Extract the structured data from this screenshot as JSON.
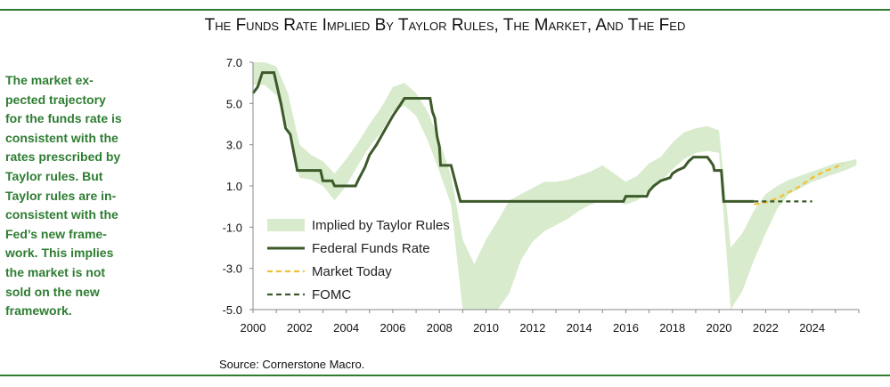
{
  "header": {
    "title": "The Funds Rate Implied By Taylor Rules, The Market, And The Fed"
  },
  "sidebar": {
    "lines": [
      "The market ex-",
      "pected trajectory",
      "for the funds rate is",
      "consistent with the",
      "rates prescribed by",
      "Taylor rules.  But",
      "Taylor rules are in-",
      "consistent with the",
      "Fed’s new frame-",
      "work.  This implies",
      "the market is not",
      "sold on the new",
      "framework."
    ]
  },
  "footer": {
    "source": "Source: Cornerstone Macro."
  },
  "colors": {
    "accent_green": "#2e7d32",
    "sidebar_text": "#2e7d32",
    "band_fill": "#d8ebcc",
    "fed_line": "#3d5a2b",
    "market_line": "#f2c037",
    "fomc_line": "#3d5a2b"
  },
  "chart_data": {
    "type": "line",
    "title": "The Funds Rate Implied By Taylor Rules, The Market, And The Fed",
    "xlabel": "",
    "ylabel": "",
    "xlim": [
      2000,
      2026
    ],
    "ylim": [
      -5,
      7
    ],
    "x_ticks": [
      "2000",
      "2002",
      "2004",
      "2006",
      "2008",
      "2010",
      "2012",
      "2014",
      "2016",
      "2018",
      "2020",
      "2022",
      "2024"
    ],
    "y_ticks": [
      "7.0",
      "5.0",
      "3.0",
      "1.0",
      "-1.0",
      "-3.0",
      "-5.0"
    ],
    "grid": false,
    "legend": {
      "placement": "lower-left",
      "entries": [
        "Implied by Taylor Rules",
        "Federal Funds Rate",
        "Market Today",
        "FOMC"
      ]
    },
    "series": [
      {
        "name": "Implied by Taylor Rules",
        "style": "band",
        "x": [
          2000.0,
          2000.5,
          2001.0,
          2001.5,
          2002.0,
          2002.5,
          2003.0,
          2003.5,
          2004.0,
          2004.5,
          2005.0,
          2005.5,
          2006.0,
          2006.5,
          2007.0,
          2007.5,
          2008.0,
          2008.5,
          2009.0,
          2009.5,
          2010.0,
          2010.5,
          2011.0,
          2011.5,
          2012.0,
          2012.5,
          2013.0,
          2013.5,
          2014.0,
          2014.5,
          2015.0,
          2015.5,
          2016.0,
          2016.5,
          2017.0,
          2017.5,
          2018.0,
          2018.5,
          2019.0,
          2019.5,
          2020.0,
          2020.5,
          2021.0,
          2021.5,
          2022.0,
          2022.5,
          2023.0,
          2023.5,
          2024.0,
          2024.5,
          2025.0,
          2025.5,
          2025.9
        ],
        "upper": [
          7.0,
          7.0,
          6.8,
          5.5,
          3.0,
          2.5,
          2.2,
          1.6,
          2.3,
          3.1,
          4.0,
          4.8,
          5.8,
          6.0,
          5.5,
          4.6,
          3.2,
          1.5,
          -1.6,
          -2.8,
          -1.6,
          -0.7,
          0.3,
          0.6,
          0.9,
          1.2,
          1.2,
          1.3,
          1.5,
          1.7,
          2.0,
          1.6,
          1.2,
          1.5,
          2.1,
          2.4,
          3.1,
          3.6,
          3.8,
          3.9,
          3.7,
          -2.0,
          -1.3,
          -0.2,
          0.6,
          1.0,
          1.3,
          1.5,
          1.7,
          1.9,
          2.1,
          2.2,
          2.3
        ],
        "lower": [
          5.9,
          5.9,
          5.4,
          3.8,
          1.4,
          1.3,
          1.0,
          0.3,
          1.0,
          2.0,
          2.9,
          3.6,
          4.6,
          4.9,
          4.4,
          3.2,
          1.7,
          0.1,
          -5.0,
          -5.0,
          -5.0,
          -5.0,
          -4.2,
          -2.6,
          -1.7,
          -1.2,
          -0.9,
          -0.6,
          -0.2,
          0.1,
          0.3,
          0.3,
          0.1,
          0.3,
          0.8,
          1.2,
          1.8,
          2.3,
          2.6,
          2.7,
          2.6,
          -5.0,
          -4.1,
          -2.6,
          -1.3,
          -0.1,
          0.6,
          0.9,
          1.2,
          1.4,
          1.6,
          1.8,
          2.0
        ]
      },
      {
        "name": "Federal Funds Rate",
        "style": "line",
        "x": [
          2000.0,
          2000.2,
          2000.4,
          2000.9,
          2001.0,
          2001.2,
          2001.4,
          2001.6,
          2001.9,
          2002.9,
          2003.0,
          2003.4,
          2003.5,
          2004.4,
          2004.5,
          2004.8,
          2005.0,
          2005.3,
          2005.5,
          2005.8,
          2006.0,
          2006.3,
          2006.5,
          2007.6,
          2007.7,
          2007.8,
          2007.9,
          2008.0,
          2008.05,
          2008.3,
          2008.5,
          2008.9,
          2009.0,
          2015.9,
          2016.0,
          2016.9,
          2017.0,
          2017.2,
          2017.5,
          2017.9,
          2018.0,
          2018.2,
          2018.5,
          2018.7,
          2018.9,
          2019.5,
          2019.6,
          2019.75,
          2019.8,
          2020.1,
          2020.2,
          2021.5
        ],
        "values": [
          5.5,
          5.8,
          6.5,
          6.5,
          6.0,
          5.0,
          3.8,
          3.5,
          1.75,
          1.75,
          1.25,
          1.25,
          1.0,
          1.0,
          1.25,
          1.9,
          2.5,
          3.0,
          3.4,
          4.0,
          4.4,
          4.9,
          5.25,
          5.25,
          4.6,
          4.3,
          3.4,
          2.9,
          2.0,
          2.0,
          2.0,
          0.25,
          0.25,
          0.25,
          0.5,
          0.5,
          0.75,
          1.0,
          1.25,
          1.4,
          1.6,
          1.75,
          1.9,
          2.2,
          2.4,
          2.4,
          2.25,
          2.0,
          1.75,
          1.75,
          0.25,
          0.25
        ]
      },
      {
        "name": "Market Today",
        "style": "dashed",
        "x": [
          2021.5,
          2022.0,
          2022.5,
          2023.0,
          2023.5,
          2024.0,
          2024.5,
          2025.0,
          2025.3
        ],
        "values": [
          0.1,
          0.2,
          0.4,
          0.7,
          1.0,
          1.4,
          1.7,
          1.9,
          2.1
        ]
      },
      {
        "name": "FOMC",
        "style": "dashed",
        "x": [
          2021.5,
          2024.0
        ],
        "values": [
          0.25,
          0.25
        ]
      }
    ]
  }
}
